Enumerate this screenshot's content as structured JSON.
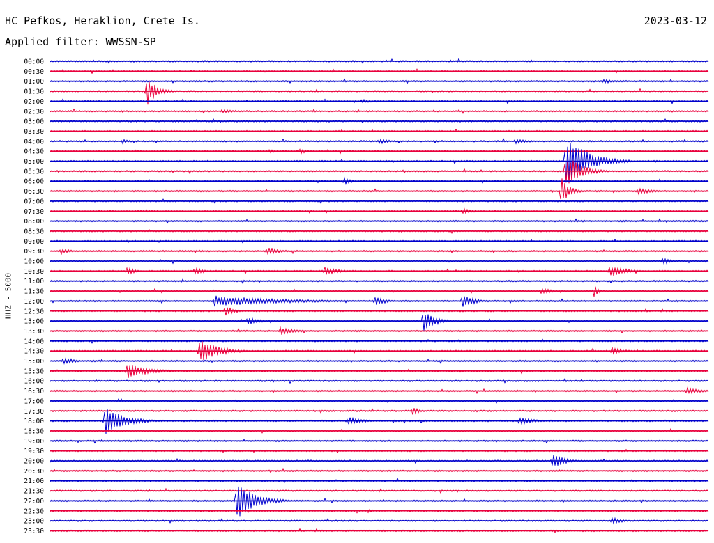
{
  "header": {
    "station": "HC Pefkos, Heraklion, Crete Is.",
    "date": "2023-03-12",
    "filter": "Applied filter: WWSSN-SP"
  },
  "chart_data": {
    "type": "line",
    "title": "HC Pefkos, Heraklion, Crete Is.",
    "ylabel": "HHZ - 5000",
    "grid": false,
    "colors": [
      "#0000cc",
      "#e8003c"
    ],
    "rows": [
      "00:00",
      "00:30",
      "01:00",
      "01:30",
      "02:00",
      "02:30",
      "03:00",
      "03:30",
      "04:00",
      "04:30",
      "05:00",
      "05:30",
      "06:00",
      "06:30",
      "07:00",
      "07:30",
      "08:00",
      "08:30",
      "09:00",
      "09:30",
      "10:00",
      "10:30",
      "11:00",
      "11:30",
      "12:00",
      "12:30",
      "13:00",
      "13:30",
      "14:00",
      "14:30",
      "15:00",
      "15:30",
      "16:00",
      "16:30",
      "17:00",
      "17:30",
      "18:00",
      "18:30",
      "19:00",
      "19:30",
      "20:00",
      "20:30",
      "21:00",
      "21:30",
      "22:00",
      "22:30",
      "23:00",
      "23:30"
    ],
    "events": [
      {
        "row": 3,
        "minute": 4.4,
        "amplitude": 22,
        "duration": 1.3
      },
      {
        "row": 2,
        "minute": 25.2,
        "amplitude": 4,
        "duration": 1.5
      },
      {
        "row": 5,
        "minute": 7.8,
        "amplitude": 3,
        "duration": 2.5
      },
      {
        "row": 4,
        "minute": 14.2,
        "amplitude": 3,
        "duration": 1.5
      },
      {
        "row": 8,
        "minute": 3.3,
        "amplitude": 4,
        "duration": 1
      },
      {
        "row": 8,
        "minute": 15.0,
        "amplitude": 4,
        "duration": 1.5
      },
      {
        "row": 8,
        "minute": 21.2,
        "amplitude": 4,
        "duration": 2
      },
      {
        "row": 9,
        "minute": 10.0,
        "amplitude": 4,
        "duration": 1
      },
      {
        "row": 9,
        "minute": 11.4,
        "amplitude": 4,
        "duration": 1
      },
      {
        "row": 10,
        "minute": 23.5,
        "amplitude": 36,
        "duration": 3
      },
      {
        "row": 11,
        "minute": 23.5,
        "amplitude": 25,
        "duration": 2
      },
      {
        "row": 13,
        "minute": 23.3,
        "amplitude": 22,
        "duration": 1
      },
      {
        "row": 12,
        "minute": 13.4,
        "amplitude": 6,
        "duration": 1
      },
      {
        "row": 13,
        "minute": 26.8,
        "amplitude": 5,
        "duration": 2
      },
      {
        "row": 15,
        "minute": 18.8,
        "amplitude": 4,
        "duration": 2
      },
      {
        "row": 19,
        "minute": 9.9,
        "amplitude": 7,
        "duration": 1.5
      },
      {
        "row": 19,
        "minute": 0.5,
        "amplitude": 5,
        "duration": 1.2
      },
      {
        "row": 20,
        "minute": 27.9,
        "amplitude": 5,
        "duration": 1.5
      },
      {
        "row": 21,
        "minute": 25.5,
        "amplitude": 9,
        "duration": 2
      },
      {
        "row": 21,
        "minute": 12.5,
        "amplitude": 6,
        "duration": 2
      },
      {
        "row": 21,
        "minute": 6.6,
        "amplitude": 6,
        "duration": 1
      },
      {
        "row": 21,
        "minute": 3.5,
        "amplitude": 7,
        "duration": 1
      },
      {
        "row": 23,
        "minute": 22.4,
        "amplitude": 5,
        "duration": 1.5
      },
      {
        "row": 23,
        "minute": 24.8,
        "amplitude": 10,
        "duration": 0.5
      },
      {
        "row": 24,
        "minute": 7.5,
        "amplitude": 8,
        "duration": 9
      },
      {
        "row": 24,
        "minute": 18.8,
        "amplitude": 11,
        "duration": 1.5
      },
      {
        "row": 24,
        "minute": 14.8,
        "amplitude": 7,
        "duration": 1.5
      },
      {
        "row": 25,
        "minute": 8.0,
        "amplitude": 9,
        "duration": 1
      },
      {
        "row": 26,
        "minute": 17.0,
        "amplitude": 17,
        "duration": 1.5
      },
      {
        "row": 26,
        "minute": 9.0,
        "amplitude": 6,
        "duration": 1.5
      },
      {
        "row": 27,
        "minute": 10.5,
        "amplitude": 6,
        "duration": 2
      },
      {
        "row": 29,
        "minute": 6.8,
        "amplitude": 18,
        "duration": 2.5
      },
      {
        "row": 29,
        "minute": 25.6,
        "amplitude": 6,
        "duration": 1.5
      },
      {
        "row": 30,
        "minute": 0.6,
        "amplitude": 6,
        "duration": 1.5
      },
      {
        "row": 31,
        "minute": 3.5,
        "amplitude": 11,
        "duration": 3
      },
      {
        "row": 33,
        "minute": 29.0,
        "amplitude": 5,
        "duration": 2
      },
      {
        "row": 35,
        "minute": 16.5,
        "amplitude": 6,
        "duration": 1
      },
      {
        "row": 36,
        "minute": 2.5,
        "amplitude": 22,
        "duration": 2.5
      },
      {
        "row": 36,
        "minute": 13.6,
        "amplitude": 6,
        "duration": 2
      },
      {
        "row": 36,
        "minute": 21.4,
        "amplitude": 6,
        "duration": 2
      },
      {
        "row": 40,
        "minute": 22.9,
        "amplitude": 12,
        "duration": 1.5
      },
      {
        "row": 44,
        "minute": 8.5,
        "amplitude": 27,
        "duration": 2.5
      },
      {
        "row": 46,
        "minute": 25.6,
        "amplitude": 5,
        "duration": 1.5
      },
      {
        "row": 45,
        "minute": 14.5,
        "amplitude": 3,
        "duration": 1
      }
    ]
  }
}
